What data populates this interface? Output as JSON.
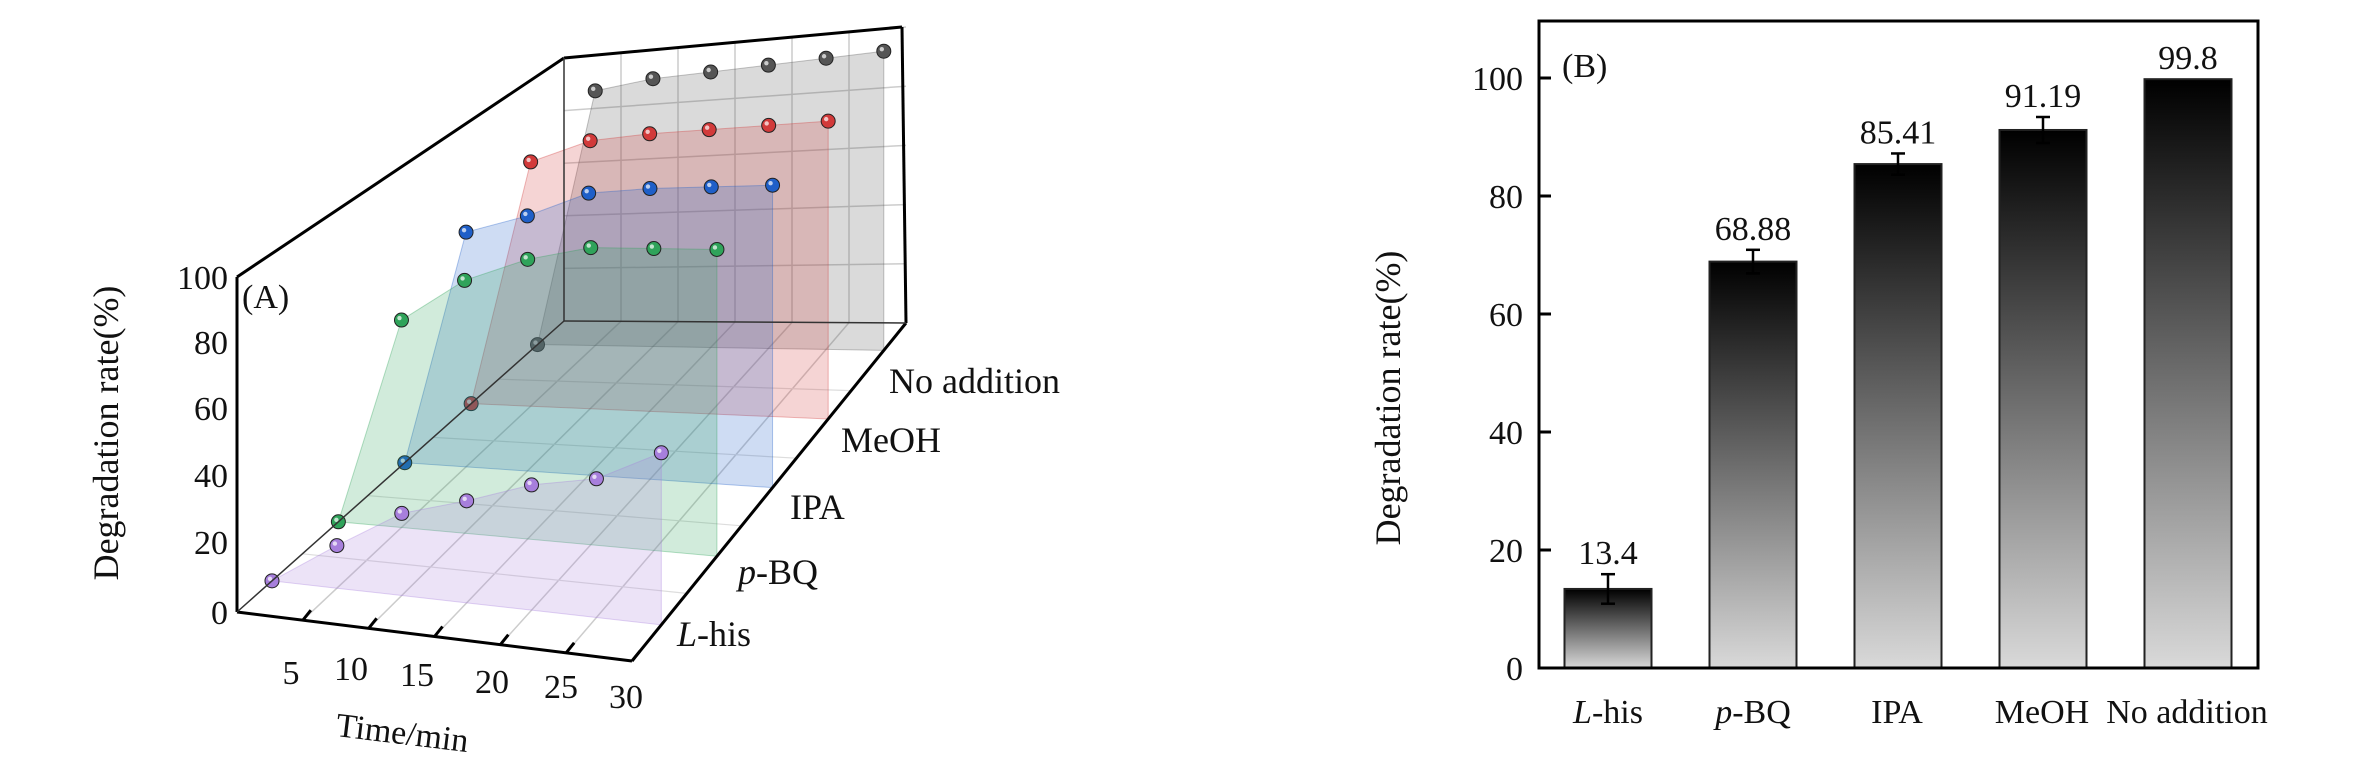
{
  "chart_data": [
    {
      "type": "area",
      "panel_label": "(A)",
      "xlabel": "Time/min",
      "ylabel": "Degradation rate(%)",
      "x": [
        0,
        5,
        10,
        15,
        20,
        25,
        30
      ],
      "x_tick_labels": [
        "5",
        "10",
        "15",
        "20",
        "25",
        "30"
      ],
      "y_tick_labels": [
        "0",
        "20",
        "40",
        "60",
        "80",
        "100"
      ],
      "ylim": [
        0,
        100
      ],
      "xlim": [
        0,
        30
      ],
      "grid": true,
      "series": [
        {
          "name": "L-his",
          "name_italic": "L",
          "name_rest": "-his",
          "color": "#a77fdc",
          "values": [
            0,
            13,
            25,
            31,
            38,
            42,
            52
          ]
        },
        {
          "name": "p-BQ",
          "name_italic": "p",
          "name_rest": "-BQ",
          "color": "#2fa35a",
          "values": [
            0,
            66,
            80,
            88,
            93,
            94,
            95
          ]
        },
        {
          "name": "IPA",
          "name_italic": "",
          "name_rest": "IPA",
          "color": "#1f5fc8",
          "values": [
            0,
            78,
            84,
            92,
            94,
            95,
            96
          ]
        },
        {
          "name": "MeOH",
          "name_italic": "",
          "name_rest": "MeOH",
          "color": "#d23a3a",
          "values": [
            0,
            85,
            92,
            94,
            95,
            96,
            97
          ]
        },
        {
          "name": "No addition",
          "name_italic": "",
          "name_rest": "No addition",
          "color": "#555555",
          "values": [
            0,
            93,
            96,
            97,
            98,
            99,
            100
          ]
        }
      ]
    },
    {
      "type": "bar",
      "panel_label": "(B)",
      "xlabel": "",
      "ylabel": "Degradation rate(%)",
      "categories": [
        "L-his",
        "p-BQ",
        "IPA",
        "MeOH",
        "No addition"
      ],
      "category_italic": [
        "L",
        "p",
        "",
        "",
        ""
      ],
      "category_rest": [
        "-his",
        "-BQ",
        "IPA",
        "MeOH",
        "No addition"
      ],
      "values": [
        13.4,
        68.88,
        85.41,
        91.19,
        99.8
      ],
      "data_labels": [
        "13.4",
        "68.88",
        "85.41",
        "91.19",
        "99.8"
      ],
      "errors": [
        2.5,
        2.0,
        1.8,
        2.2,
        0
      ],
      "y_tick_labels": [
        "0",
        "20",
        "40",
        "60",
        "80",
        "100"
      ],
      "ylim": [
        0,
        110
      ],
      "bar_gradient": [
        "#000000",
        "#d9d9d9"
      ]
    }
  ]
}
